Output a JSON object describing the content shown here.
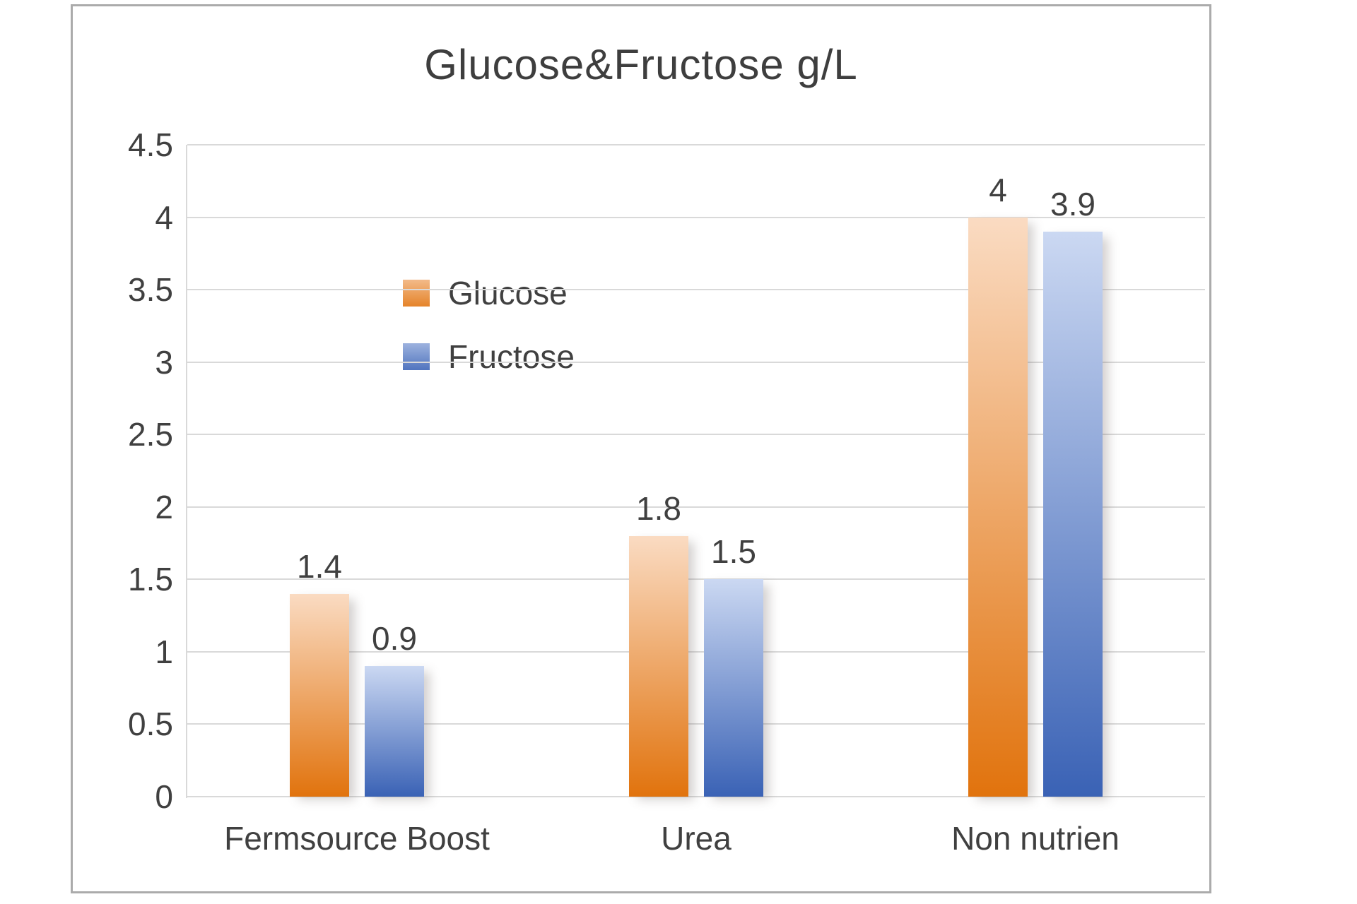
{
  "chart_data": {
    "type": "bar",
    "title": "Glucose&Fructose g/L",
    "categories": [
      "Fermsource Boost",
      "Urea",
      "Non nutrien"
    ],
    "series": [
      {
        "name": "Glucose",
        "values": [
          1.4,
          1.8,
          4
        ],
        "labels": [
          "1.4",
          "1.8",
          "4"
        ],
        "color_top": "#FADBC2",
        "color_bottom": "#E1730D"
      },
      {
        "name": "Fructose",
        "values": [
          0.9,
          1.5,
          3.9
        ],
        "labels": [
          "0.9",
          "1.5",
          "3.9"
        ],
        "color_top": "#CBD8F2",
        "color_bottom": "#3A62B5"
      }
    ],
    "ylim": [
      0,
      4.5
    ],
    "ytick_step": 0.5,
    "ytick_labels": [
      "0",
      "0.5",
      "1",
      "1.5",
      "2",
      "2.5",
      "3",
      "3.5",
      "4",
      "4.5"
    ],
    "grid": "horizontal",
    "legend_position": "inside-upper-left",
    "legend_entries": [
      "Glucose",
      "Fructose"
    ],
    "xlabel": "",
    "ylabel": ""
  },
  "colors": {
    "text": "#404040",
    "gridline": "#D9D9D9",
    "frame_border": "#ABABAB",
    "background": "#FFFFFF"
  }
}
